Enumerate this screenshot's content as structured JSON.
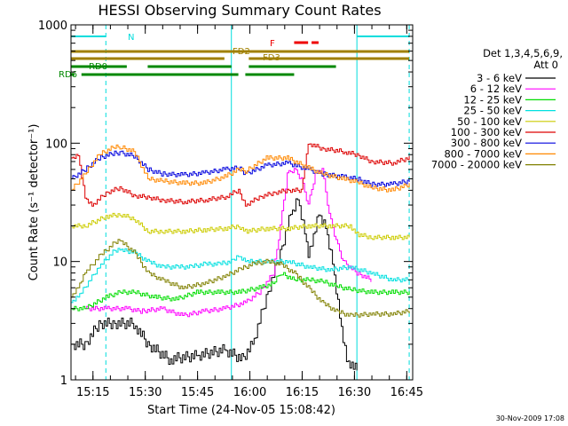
{
  "chart_data": {
    "type": "line",
    "title": "HESSI Observing Summary Count Rates",
    "xlabel": "Start Time (24-Nov-05 15:08:42)",
    "ylabel": "Count Rate (s⁻¹ detector⁻¹)",
    "yscale": "log",
    "ylim": [
      1,
      1000
    ],
    "xlim_minutes": [
      0,
      98
    ],
    "x_ticks": [
      {
        "label": "15:15",
        "minute": 6.3
      },
      {
        "label": "15:30",
        "minute": 21.3
      },
      {
        "label": "15:45",
        "minute": 36.3
      },
      {
        "label": "16:00",
        "minute": 51.3
      },
      {
        "label": "16:15",
        "minute": 66.3
      },
      {
        "label": "16:30",
        "minute": 81.3
      },
      {
        "label": "16:45",
        "minute": 96.3
      }
    ],
    "y_ticks": [
      {
        "label": "1",
        "value": 1
      },
      {
        "label": "10",
        "value": 10
      },
      {
        "label": "100",
        "value": 100
      },
      {
        "label": "1000",
        "value": 1000
      }
    ],
    "legend": {
      "header": [
        "Det 1,3,4,5,6,9,",
        "Att 0"
      ],
      "placement": "right"
    },
    "series": [
      {
        "name": "3 - 6 keV",
        "color": "#000000",
        "points": [
          [
            0,
            2
          ],
          [
            4,
            2
          ],
          [
            8,
            3
          ],
          [
            12,
            3
          ],
          [
            18,
            3
          ],
          [
            22,
            2
          ],
          [
            28,
            1.5
          ],
          [
            36,
            1.6
          ],
          [
            44,
            1.8
          ],
          [
            49,
            1.5
          ],
          [
            52,
            2
          ],
          [
            56,
            5
          ],
          [
            60,
            12
          ],
          [
            63,
            25
          ],
          [
            65,
            35
          ],
          [
            67,
            18
          ],
          [
            68,
            12
          ],
          [
            69,
            15
          ],
          [
            71,
            26
          ],
          [
            73,
            20
          ],
          [
            75,
            10
          ],
          [
            77,
            3.5
          ],
          [
            79,
            1.5
          ],
          [
            82,
            1.2
          ]
        ]
      },
      {
        "name": "6 - 12 keV",
        "color": "#ff00ff",
        "points": [
          [
            4,
            4
          ],
          [
            10,
            4
          ],
          [
            16,
            4
          ],
          [
            20,
            3.8
          ],
          [
            26,
            4
          ],
          [
            32,
            3.5
          ],
          [
            38,
            3.8
          ],
          [
            44,
            4
          ],
          [
            50,
            4.5
          ],
          [
            54,
            5.5
          ],
          [
            58,
            8
          ],
          [
            60,
            20
          ],
          [
            62,
            55
          ],
          [
            64,
            60
          ],
          [
            66,
            50
          ],
          [
            68,
            30
          ],
          [
            70,
            55
          ],
          [
            72,
            60
          ],
          [
            74,
            25
          ],
          [
            76,
            15
          ],
          [
            78,
            10
          ],
          [
            82,
            8
          ],
          [
            86,
            7
          ]
        ]
      },
      {
        "name": "12 - 25 keV",
        "color": "#00dd00",
        "points": [
          [
            0,
            4
          ],
          [
            4,
            4
          ],
          [
            10,
            5
          ],
          [
            14,
            5.5
          ],
          [
            18,
            5.5
          ],
          [
            24,
            5
          ],
          [
            30,
            4.8
          ],
          [
            36,
            5.5
          ],
          [
            42,
            5.5
          ],
          [
            48,
            5.5
          ],
          [
            54,
            6
          ],
          [
            58,
            6.5
          ],
          [
            60,
            8
          ],
          [
            64,
            7
          ],
          [
            68,
            7
          ],
          [
            72,
            6.8
          ],
          [
            76,
            6.2
          ],
          [
            80,
            5.8
          ],
          [
            86,
            5.5
          ],
          [
            92,
            5.5
          ],
          [
            97,
            5.5
          ]
        ]
      },
      {
        "name": "25 - 50 keV",
        "color": "#00e0e0",
        "points": [
          [
            0,
            4.5
          ],
          [
            2,
            5
          ],
          [
            8,
            9
          ],
          [
            12,
            12
          ],
          [
            14,
            12.5
          ],
          [
            18,
            12
          ],
          [
            22,
            10
          ],
          [
            26,
            9
          ],
          [
            30,
            9
          ],
          [
            34,
            9
          ],
          [
            38,
            9.5
          ],
          [
            42,
            9.5
          ],
          [
            46,
            10
          ],
          [
            48,
            11
          ],
          [
            50,
            10
          ],
          [
            56,
            10
          ],
          [
            62,
            10
          ],
          [
            68,
            9
          ],
          [
            74,
            8.5
          ],
          [
            80,
            9
          ],
          [
            86,
            8
          ],
          [
            92,
            7
          ],
          [
            97,
            7
          ]
        ]
      },
      {
        "name": "50 - 100 keV",
        "color": "#cccc00",
        "points": [
          [
            0,
            20
          ],
          [
            4,
            20
          ],
          [
            10,
            24
          ],
          [
            14,
            25
          ],
          [
            18,
            23
          ],
          [
            22,
            18
          ],
          [
            26,
            18
          ],
          [
            32,
            18
          ],
          [
            38,
            18.5
          ],
          [
            44,
            19
          ],
          [
            48,
            20
          ],
          [
            50,
            18
          ],
          [
            56,
            19
          ],
          [
            62,
            19
          ],
          [
            68,
            20
          ],
          [
            74,
            20
          ],
          [
            80,
            20
          ],
          [
            82,
            17
          ],
          [
            86,
            16
          ],
          [
            92,
            16
          ],
          [
            97,
            16
          ]
        ]
      },
      {
        "name": "100 - 300 keV",
        "color": "#dd0000",
        "points": [
          [
            0,
            75
          ],
          [
            2,
            80
          ],
          [
            4,
            35
          ],
          [
            6,
            30
          ],
          [
            10,
            38
          ],
          [
            14,
            42
          ],
          [
            18,
            36
          ],
          [
            22,
            35
          ],
          [
            26,
            33
          ],
          [
            32,
            32
          ],
          [
            38,
            33
          ],
          [
            44,
            35
          ],
          [
            48,
            40
          ],
          [
            50,
            30
          ],
          [
            54,
            35
          ],
          [
            58,
            38
          ],
          [
            62,
            40
          ],
          [
            66,
            40
          ],
          [
            68,
            100
          ],
          [
            72,
            90
          ],
          [
            78,
            85
          ],
          [
            82,
            80
          ],
          [
            86,
            70
          ],
          [
            92,
            68
          ],
          [
            97,
            75
          ]
        ]
      },
      {
        "name": "300 - 800 keV",
        "color": "#0000dd",
        "points": [
          [
            0,
            50
          ],
          [
            4,
            60
          ],
          [
            8,
            75
          ],
          [
            12,
            82
          ],
          [
            14,
            83
          ],
          [
            18,
            78
          ],
          [
            22,
            60
          ],
          [
            26,
            55
          ],
          [
            32,
            54
          ],
          [
            38,
            56
          ],
          [
            44,
            60
          ],
          [
            48,
            62
          ],
          [
            50,
            55
          ],
          [
            56,
            65
          ],
          [
            62,
            68
          ],
          [
            68,
            60
          ],
          [
            72,
            55
          ],
          [
            78,
            52
          ],
          [
            82,
            50
          ],
          [
            86,
            45
          ],
          [
            92,
            45
          ],
          [
            97,
            48
          ]
        ]
      },
      {
        "name": "800 - 7000 keV",
        "color": "#ff8800",
        "points": [
          [
            0,
            40
          ],
          [
            4,
            55
          ],
          [
            8,
            80
          ],
          [
            12,
            92
          ],
          [
            14,
            93
          ],
          [
            18,
            85
          ],
          [
            22,
            50
          ],
          [
            26,
            48
          ],
          [
            32,
            46
          ],
          [
            38,
            46
          ],
          [
            44,
            52
          ],
          [
            48,
            60
          ],
          [
            50,
            58
          ],
          [
            56,
            75
          ],
          [
            62,
            75
          ],
          [
            68,
            62
          ],
          [
            72,
            55
          ],
          [
            78,
            50
          ],
          [
            82,
            47
          ],
          [
            86,
            42
          ],
          [
            92,
            40
          ],
          [
            97,
            45
          ]
        ]
      },
      {
        "name": "7000 - 20000 keV",
        "color": "#808000",
        "points": [
          [
            0,
            5
          ],
          [
            2,
            6
          ],
          [
            4,
            8
          ],
          [
            8,
            11
          ],
          [
            12,
            14
          ],
          [
            14,
            15
          ],
          [
            18,
            12
          ],
          [
            22,
            8
          ],
          [
            26,
            7
          ],
          [
            32,
            6
          ],
          [
            38,
            6.5
          ],
          [
            44,
            7.5
          ],
          [
            48,
            8.5
          ],
          [
            52,
            9.5
          ],
          [
            56,
            10
          ],
          [
            60,
            9.5
          ],
          [
            64,
            8
          ],
          [
            68,
            6
          ],
          [
            72,
            4.5
          ],
          [
            76,
            3.8
          ],
          [
            80,
            3.5
          ],
          [
            86,
            3.6
          ],
          [
            92,
            3.6
          ],
          [
            97,
            3.8
          ]
        ]
      }
    ],
    "flags": [
      {
        "label": "N",
        "color": "#00dddd",
        "segments": [
          [
            0,
            10
          ],
          [
            82,
            97
          ]
        ]
      },
      {
        "label": "F",
        "color": "#ee0000",
        "segments": [
          [
            64,
            68
          ],
          [
            69,
            71
          ]
        ]
      },
      {
        "label": "FD2",
        "color": "#a08000",
        "segments": [
          [
            0,
            97
          ]
        ]
      },
      {
        "label": "FD3",
        "color": "#a08000",
        "segments": [
          [
            0,
            44
          ],
          [
            51,
            97
          ]
        ]
      },
      {
        "label": "RD0",
        "color": "#008800",
        "segments": [
          [
            0,
            16
          ],
          [
            22,
            46
          ],
          [
            51,
            76
          ]
        ]
      },
      {
        "label": "RD6",
        "color": "#008800",
        "segments": [
          [
            0,
            1
          ],
          [
            3,
            48
          ],
          [
            50,
            64
          ]
        ]
      }
    ],
    "vlines": [
      {
        "minute": 0,
        "style": "solid"
      },
      {
        "minute": 10,
        "style": "dashed"
      },
      {
        "minute": 46,
        "style": "solid"
      },
      {
        "minute": 82,
        "style": "solid"
      },
      {
        "minute": 97,
        "style": "dashed"
      }
    ]
  },
  "footer": {
    "timestamp": "30-Nov-2009 17:08"
  }
}
